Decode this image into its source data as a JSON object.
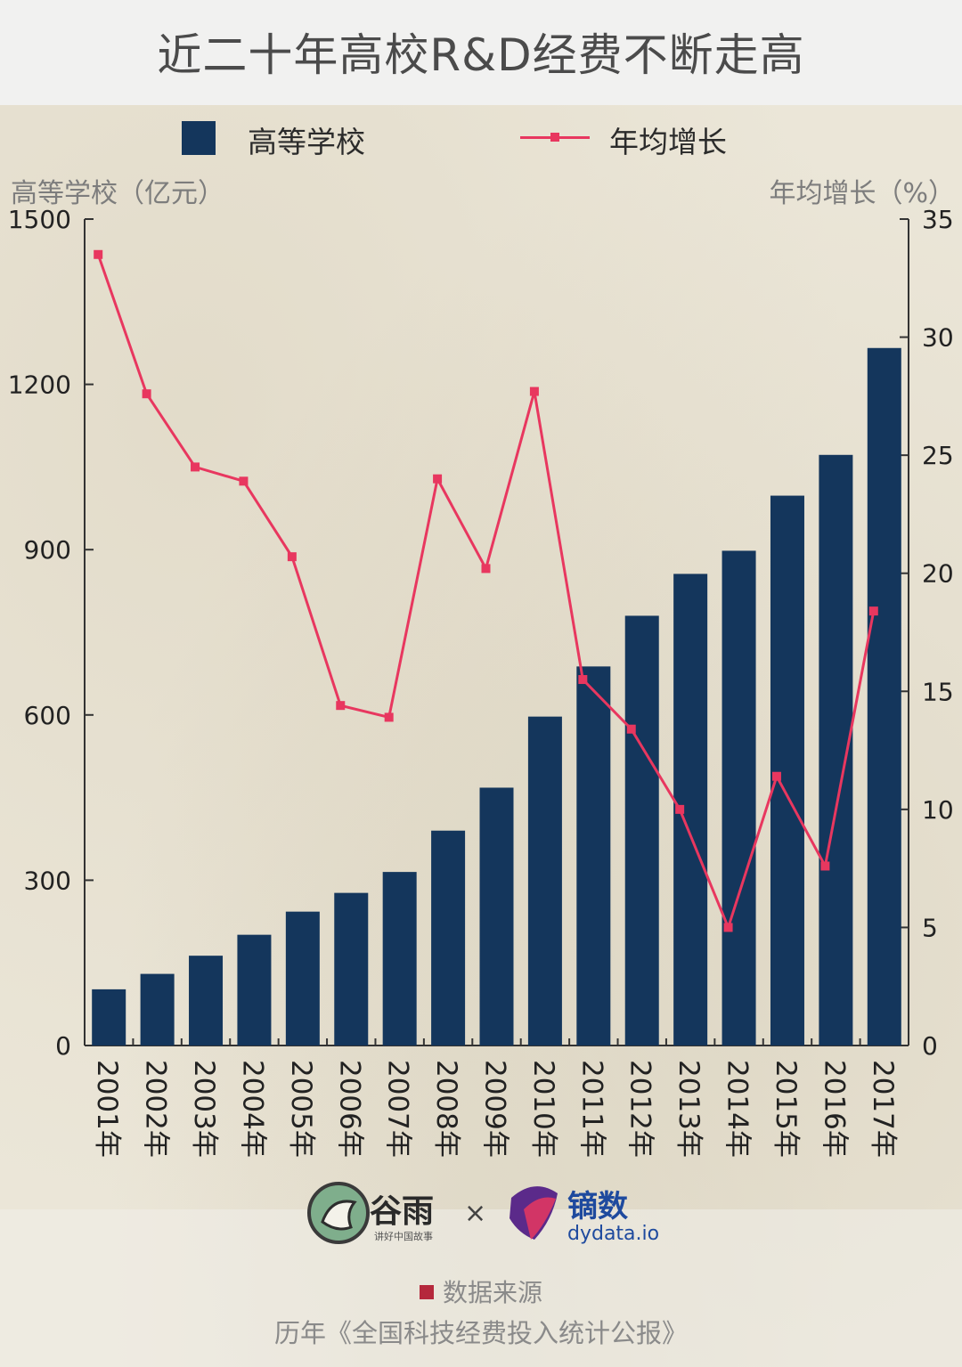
{
  "title": "近二十年高校R&D经费不断走高",
  "legend": {
    "bar_label": "高等学校",
    "line_label": "年均增长"
  },
  "colors": {
    "bar": "#14365c",
    "line": "#e8375f"
  },
  "chart_data": {
    "type": "bar",
    "title": "近二十年高校R&D经费不断走高",
    "categories": [
      "2001年",
      "2002年",
      "2003年",
      "2004年",
      "2005年",
      "2006年",
      "2007年",
      "2008年",
      "2009年",
      "2010年",
      "2011年",
      "2012年",
      "2013年",
      "2014年",
      "2015年",
      "2016年",
      "2017年"
    ],
    "series": [
      {
        "name": "高等学校",
        "type": "bar",
        "axis": "left",
        "values": [
          102,
          130,
          163,
          201,
          243,
          277,
          315,
          390,
          468,
          597,
          688,
          780,
          856,
          898,
          998,
          1072,
          1266
        ]
      },
      {
        "name": "年均增长",
        "type": "line",
        "axis": "right",
        "values": [
          33.5,
          27.6,
          24.5,
          23.9,
          20.7,
          14.4,
          13.9,
          24.0,
          20.2,
          27.7,
          15.5,
          13.4,
          10.0,
          5.0,
          11.4,
          7.6,
          18.4
        ]
      }
    ],
    "ylabel": "高等学校（亿元）",
    "y2label": "年均增长（%）",
    "ylim": [
      0,
      1500
    ],
    "y2lim": [
      0,
      35
    ],
    "yticks": [
      0,
      300,
      600,
      900,
      1200,
      1500
    ],
    "y2ticks": [
      0,
      5,
      10,
      15,
      20,
      25,
      30,
      35
    ]
  },
  "logos": {
    "guyu_name": "谷雨",
    "guyu_tagline": "讲好中国故事",
    "times_sign": "×",
    "dy_name": "镝数",
    "dy_url": "dydata.io"
  },
  "source": {
    "label": "数据来源",
    "text": "历年《全国科技经费投入统计公报》"
  }
}
